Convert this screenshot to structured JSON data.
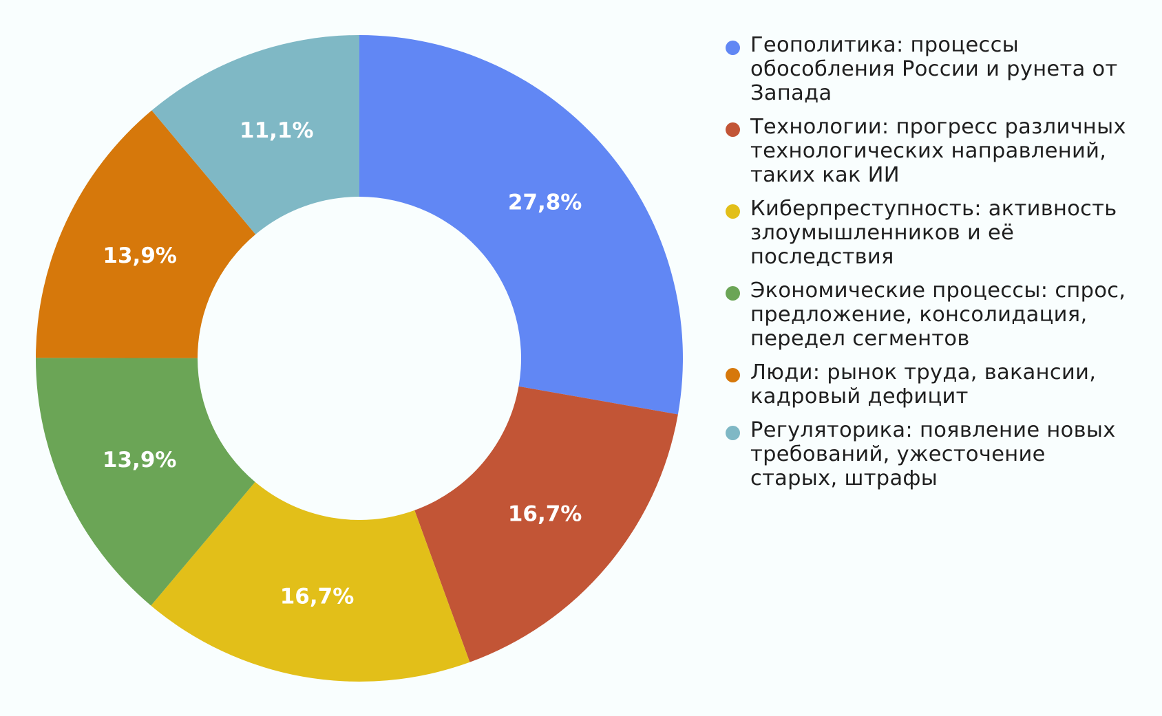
{
  "chart_data": {
    "type": "pie",
    "donut": true,
    "unit": "%",
    "legend_position": "right",
    "slices": [
      {
        "label": "Геополитика: процессы обособления России и рунета от Запада",
        "value": 27.8,
        "display": "27,8%",
        "color": "#6187f4"
      },
      {
        "label": "Технологии: прогресс различных технологических направлений, таких как ИИ",
        "value": 16.7,
        "display": "16,7%",
        "color": "#c25536"
      },
      {
        "label": "Киберпреступность: активность злоумышленников и её последствия",
        "value": 16.7,
        "display": "16,7%",
        "color": "#e2bf19"
      },
      {
        "label": "Экономические процессы: спрос, предложение, консолидация, передел сегментов",
        "value": 13.9,
        "display": "13,9%",
        "color": "#6ba556"
      },
      {
        "label": "Люди: рынок труда, вакансии, кадровый дефицит",
        "value": 13.9,
        "display": "13,9%",
        "color": "#d6780b"
      },
      {
        "label": "Регуляторика: появление новых требований, ужесточение старых, штрафы",
        "value": 11.1,
        "display": "11,1%",
        "color": "#7fb8c5"
      }
    ]
  },
  "legend": {
    "items": [
      {
        "label": "Геополитика: процессы обособления России и рунета от Запада",
        "color": "#6187f4"
      },
      {
        "label": "Технологии: прогресс различных технологических направлений, таких как ИИ",
        "color": "#c25536"
      },
      {
        "label": "Киберпреступность: активность злоумышленников и её последствия",
        "color": "#e2bf19"
      },
      {
        "label": "Экономические процессы: спрос, предложение, консолидация, передел сегментов",
        "color": "#6ba556"
      },
      {
        "label": "Люди: рынок труда, вакансии, кадровый дефицит",
        "color": "#d6780b"
      },
      {
        "label": "Регуляторика: появление новых требований, ужесточение старых, штрафы",
        "color": "#7fb8c5"
      }
    ]
  },
  "colors": {
    "background": "#f9fefe",
    "hole": "#f9fefe",
    "label_text": "#ffffff",
    "legend_text": "#1f1f1f"
  }
}
